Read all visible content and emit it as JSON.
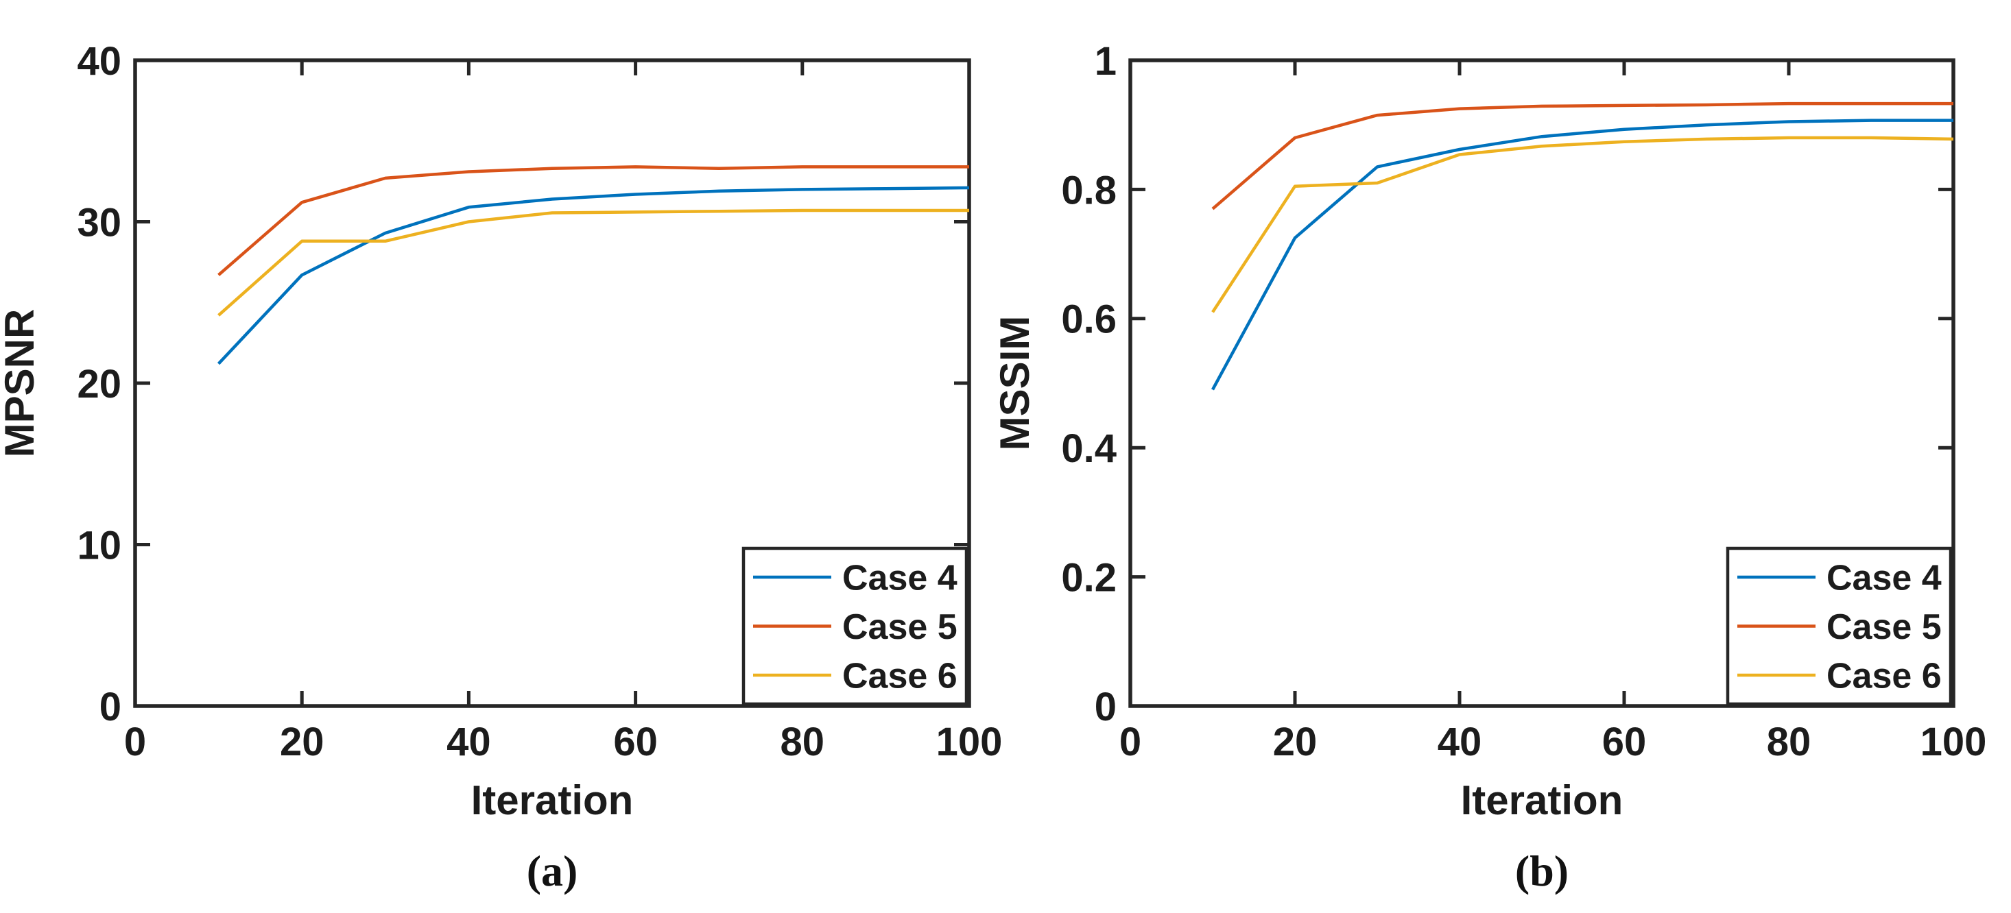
{
  "figure": {
    "background": "#ffffff",
    "axis_color": "#262626",
    "text_color": "#1c1c1c",
    "series_colors": {
      "case4": "#0072BD",
      "case5": "#D95319",
      "case6": "#EDB120"
    }
  },
  "chart_data": [
    {
      "id": "a",
      "type": "line",
      "caption": "(a)",
      "xlabel": "Iteration",
      "ylabel": "MPSNR",
      "xlim": [
        0,
        100
      ],
      "ylim": [
        0,
        40
      ],
      "xticks": [
        0,
        20,
        40,
        60,
        80,
        100
      ],
      "xtick_labels": [
        "0",
        "20",
        "40",
        "60",
        "80",
        "100"
      ],
      "yticks": [
        0,
        10,
        20,
        30,
        40
      ],
      "ytick_labels": [
        "0",
        "10",
        "20",
        "30",
        "40"
      ],
      "grid": false,
      "legend_position": "southeast",
      "x": [
        10,
        20,
        30,
        40,
        50,
        60,
        70,
        80,
        90,
        100
      ],
      "series": [
        {
          "name": "Case 4",
          "color": "#0072BD",
          "values": [
            21.2,
            26.7,
            29.3,
            30.9,
            31.4,
            31.7,
            31.9,
            32.0,
            32.05,
            32.1
          ]
        },
        {
          "name": "Case 5",
          "color": "#D95319",
          "values": [
            26.7,
            31.2,
            32.7,
            33.1,
            33.3,
            33.4,
            33.3,
            33.4,
            33.4,
            33.4
          ]
        },
        {
          "name": "Case 6",
          "color": "#EDB120",
          "values": [
            24.2,
            28.8,
            28.8,
            30.0,
            30.55,
            30.6,
            30.65,
            30.7,
            30.7,
            30.7
          ]
        }
      ]
    },
    {
      "id": "b",
      "type": "line",
      "caption": "(b)",
      "xlabel": "Iteration",
      "ylabel": "MSSIM",
      "xlim": [
        0,
        100
      ],
      "ylim": [
        0,
        1
      ],
      "xticks": [
        0,
        20,
        40,
        60,
        80,
        100
      ],
      "xtick_labels": [
        "0",
        "20",
        "40",
        "60",
        "80",
        "100"
      ],
      "yticks": [
        0,
        0.2,
        0.4,
        0.6,
        0.8,
        1
      ],
      "ytick_labels": [
        "0",
        "0.2",
        "0.4",
        "0.6",
        "0.8",
        "1"
      ],
      "grid": false,
      "legend_position": "southeast",
      "x": [
        10,
        20,
        30,
        40,
        50,
        60,
        70,
        80,
        90,
        100
      ],
      "series": [
        {
          "name": "Case 4",
          "color": "#0072BD",
          "values": [
            0.49,
            0.725,
            0.835,
            0.862,
            0.882,
            0.893,
            0.9,
            0.905,
            0.907,
            0.907
          ]
        },
        {
          "name": "Case 5",
          "color": "#D95319",
          "values": [
            0.77,
            0.88,
            0.915,
            0.925,
            0.929,
            0.93,
            0.931,
            0.933,
            0.933,
            0.933
          ]
        },
        {
          "name": "Case 6",
          "color": "#EDB120",
          "values": [
            0.61,
            0.805,
            0.81,
            0.854,
            0.867,
            0.874,
            0.878,
            0.88,
            0.88,
            0.878
          ]
        }
      ]
    }
  ]
}
